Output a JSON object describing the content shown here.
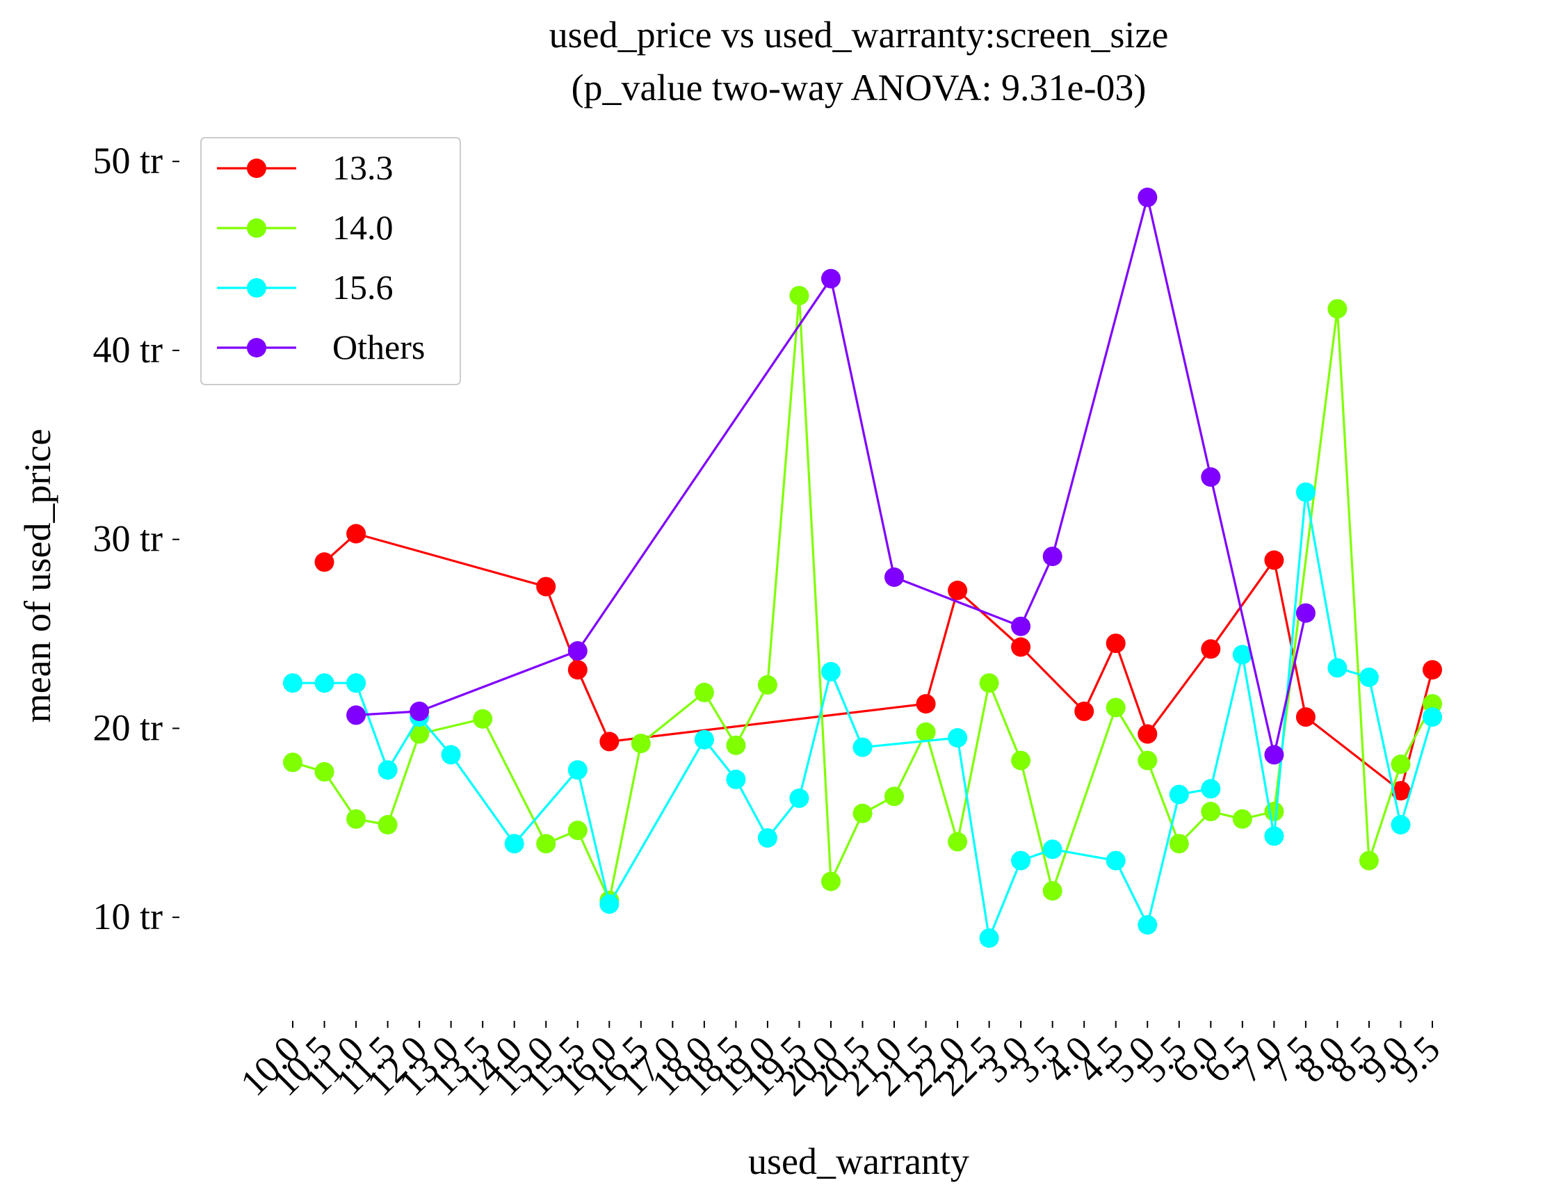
{
  "chart_data": {
    "type": "line",
    "title_line1": "used_price vs used_warranty:screen_size",
    "title_line2": "(p_value two-way ANOVA: 9.31e-03)",
    "xlabel": "used_warranty",
    "ylabel": "mean of used_price",
    "ylim": [
      5,
      51
    ],
    "yticks": [
      10,
      20,
      30,
      40,
      50
    ],
    "ytick_labels": [
      "10 tr",
      "20 tr",
      "30 tr",
      "40 tr",
      "50 tr"
    ],
    "categories": [
      "10.0",
      "10.5",
      "11.0",
      "11.5",
      "12.0",
      "13.0",
      "13.5",
      "14.0",
      "15.0",
      "15.5",
      "16.0",
      "16.5",
      "17.0",
      "18.0",
      "18.5",
      "19.0",
      "19.5",
      "20.0",
      "20.5",
      "21.0",
      "21.5",
      "22.0",
      "22.5",
      "3.0",
      "3.5",
      "4.0",
      "4.5",
      "5.0",
      "5.5",
      "6.0",
      "6.5",
      "7.0",
      "7.5",
      "8.0",
      "8.5",
      "9.0",
      "9.5"
    ],
    "legend_position": "top-left",
    "grid": false,
    "series": [
      {
        "name": "13.3",
        "color": "#ff0000",
        "values": [
          null,
          28.8,
          30.3,
          null,
          null,
          null,
          null,
          null,
          27.5,
          23.1,
          19.3,
          null,
          null,
          null,
          null,
          null,
          null,
          null,
          null,
          null,
          21.3,
          27.3,
          null,
          24.3,
          null,
          20.9,
          24.5,
          19.7,
          null,
          24.2,
          null,
          28.9,
          20.6,
          null,
          null,
          16.7,
          23.1
        ]
      },
      {
        "name": "14.0",
        "color": "#7fff00",
        "values": [
          18.2,
          17.7,
          15.2,
          14.9,
          19.7,
          null,
          20.5,
          null,
          13.9,
          14.6,
          10.9,
          19.2,
          null,
          21.9,
          19.1,
          22.3,
          42.9,
          11.9,
          15.5,
          16.4,
          19.8,
          14.0,
          22.4,
          18.3,
          11.4,
          null,
          21.1,
          18.3,
          13.9,
          15.6,
          15.2,
          15.6,
          null,
          42.2,
          13.0,
          18.1,
          21.3
        ]
      },
      {
        "name": "15.6",
        "color": "#00ffff",
        "values": [
          22.4,
          22.4,
          22.4,
          17.8,
          20.6,
          18.6,
          null,
          13.9,
          null,
          17.8,
          10.7,
          null,
          null,
          19.4,
          17.3,
          14.2,
          16.3,
          23.0,
          19.0,
          null,
          null,
          19.5,
          8.9,
          13.0,
          13.6,
          null,
          13.0,
          9.6,
          16.5,
          16.8,
          23.9,
          14.3,
          32.5,
          23.2,
          22.7,
          14.9,
          20.6
        ]
      },
      {
        "name": "Others",
        "color": "#7f00ff",
        "values": [
          null,
          null,
          20.7,
          null,
          20.9,
          null,
          null,
          null,
          null,
          24.1,
          null,
          null,
          null,
          null,
          null,
          null,
          null,
          43.8,
          null,
          28.0,
          null,
          null,
          null,
          25.4,
          29.1,
          null,
          null,
          48.1,
          null,
          33.3,
          null,
          18.6,
          26.1,
          null,
          null,
          null,
          null
        ]
      }
    ]
  }
}
